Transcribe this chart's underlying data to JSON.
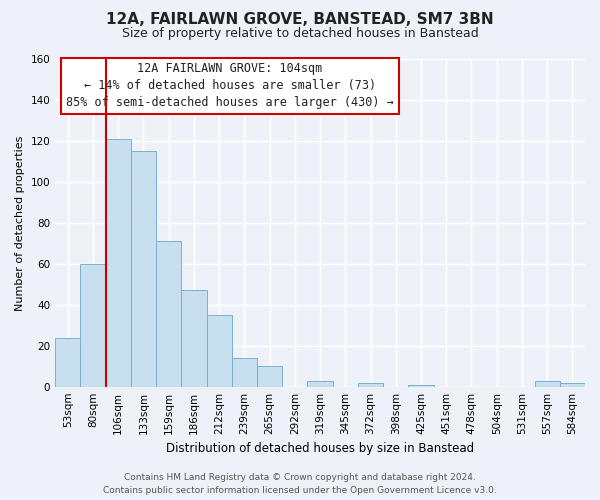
{
  "title": "12A, FAIRLAWN GROVE, BANSTEAD, SM7 3BN",
  "subtitle": "Size of property relative to detached houses in Banstead",
  "xlabel": "Distribution of detached houses by size in Banstead",
  "ylabel": "Number of detached properties",
  "bar_labels": [
    "53sqm",
    "80sqm",
    "106sqm",
    "133sqm",
    "159sqm",
    "186sqm",
    "212sqm",
    "239sqm",
    "265sqm",
    "292sqm",
    "319sqm",
    "345sqm",
    "372sqm",
    "398sqm",
    "425sqm",
    "451sqm",
    "478sqm",
    "504sqm",
    "531sqm",
    "557sqm",
    "584sqm"
  ],
  "bar_values": [
    24,
    60,
    121,
    115,
    71,
    47,
    35,
    14,
    10,
    0,
    3,
    0,
    2,
    0,
    1,
    0,
    0,
    0,
    0,
    3,
    2
  ],
  "bar_color": "#c8dff0",
  "bar_edge_color": "#7ab0d0",
  "ylim": [
    0,
    160
  ],
  "yticks": [
    0,
    20,
    40,
    60,
    80,
    100,
    120,
    140,
    160
  ],
  "vline_color": "#cc0000",
  "annotation_title": "12A FAIRLAWN GROVE: 104sqm",
  "annotation_line1": "← 14% of detached houses are smaller (73)",
  "annotation_line2": "85% of semi-detached houses are larger (430) →",
  "annotation_box_color": "#ffffff",
  "annotation_box_edge": "#cc0000",
  "footer_line1": "Contains HM Land Registry data © Crown copyright and database right 2024.",
  "footer_line2": "Contains public sector information licensed under the Open Government Licence v3.0.",
  "background_color": "#eef2f8",
  "grid_color": "#ffffff",
  "title_fontsize": 11,
  "subtitle_fontsize": 9,
  "ylabel_fontsize": 8,
  "xlabel_fontsize": 8.5,
  "tick_fontsize": 7.5,
  "annotation_fontsize": 8.5,
  "footer_fontsize": 6.5
}
